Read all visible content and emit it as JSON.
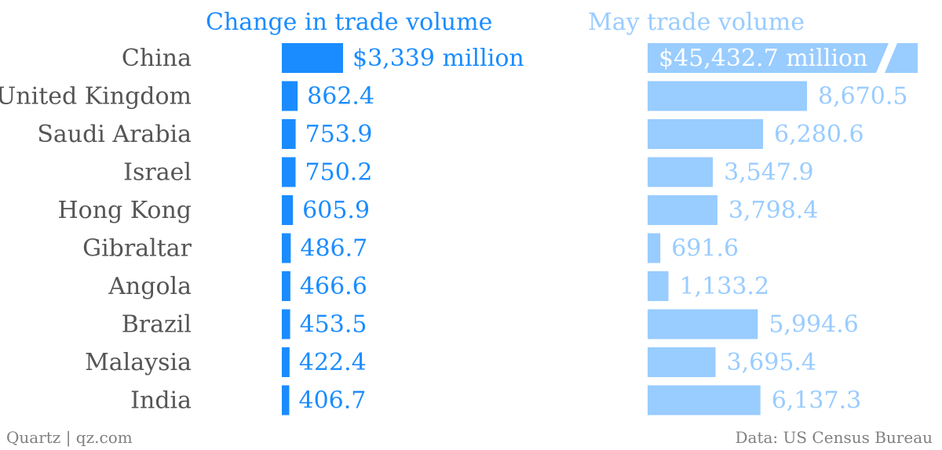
{
  "chart_data": {
    "type": "bar",
    "categories": [
      "China",
      "United Kingdom",
      "Saudi Arabia",
      "Israel",
      "Hong Kong",
      "Gibraltar",
      "Angola",
      "Brazil",
      "Malaysia",
      "India"
    ],
    "series": [
      {
        "name": "Change in trade volume",
        "values": [
          3339,
          862.4,
          753.9,
          750.2,
          605.9,
          486.7,
          466.6,
          453.5,
          422.4,
          406.7
        ],
        "value_labels": [
          "$3,339 million",
          "862.4",
          "753.9",
          "750.2",
          "605.9",
          "486.7",
          "466.6",
          "453.5",
          "422.4",
          "406.7"
        ],
        "color": "#1a8cff",
        "label_color": "#1a8cff",
        "axis_max": 3339
      },
      {
        "name": "May trade volume",
        "values": [
          45432.7,
          8670.5,
          6280.6,
          3547.9,
          3798.4,
          691.6,
          1133.2,
          5994.6,
          3695.4,
          6137.3
        ],
        "value_labels": [
          "$45,432.7 million",
          "8,670.5",
          "6,280.6",
          "3,547.9",
          "3,798.4",
          "691.6",
          "1,133.2",
          "5,994.6",
          "3,695.4",
          "6,137.3"
        ],
        "color": "#99ccff",
        "label_color": "#99ccff",
        "axis_max": 8670.5,
        "truncated": [
          true,
          false,
          false,
          false,
          false,
          false,
          false,
          false,
          false,
          false
        ]
      }
    ],
    "source": "Data: US Census Bureau",
    "credit": "Quartz | qz.com"
  }
}
